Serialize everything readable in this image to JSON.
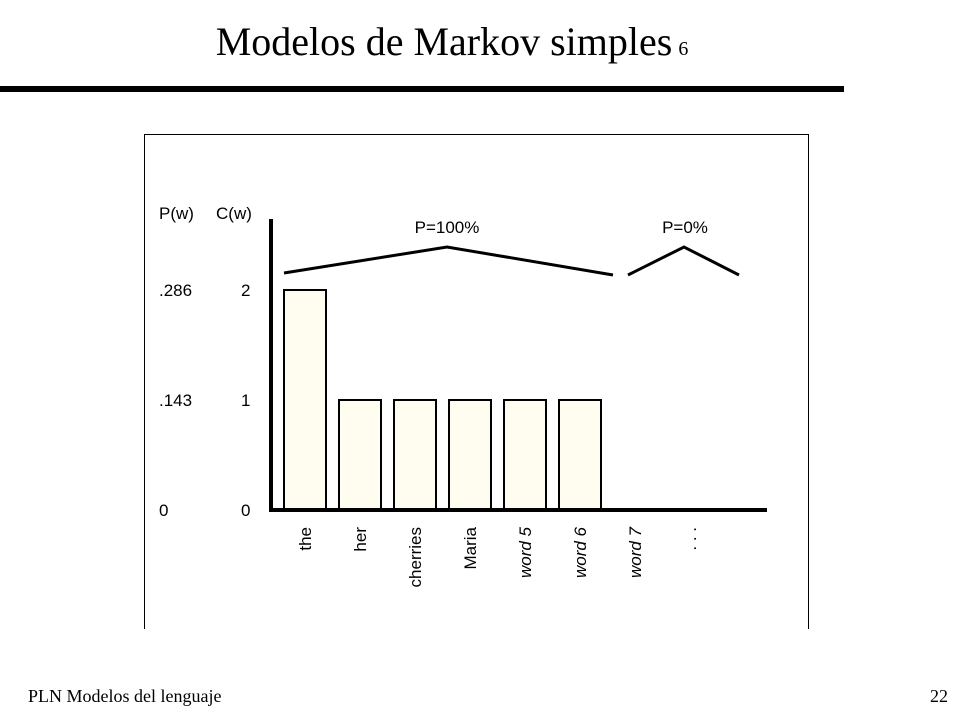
{
  "slide": {
    "title": "Modelos de Markov simples",
    "title_number": "6",
    "footer_left": "PLN  Modelos del lenguaje",
    "page_number": "22"
  },
  "chart_data": {
    "type": "bar",
    "y_axis_headers": [
      "P(w)",
      "C(w)"
    ],
    "prob_ticks": [
      ".286",
      ".143",
      "0"
    ],
    "count_ticks": [
      "2",
      "1",
      "0"
    ],
    "ylim": [
      0,
      2
    ],
    "categories": [
      "the",
      "her",
      "cherries",
      "Maria",
      "word 5",
      "word 6",
      "word 7",
      ". . ."
    ],
    "italic_categories": [
      "word 5",
      "word 6",
      "word 7"
    ],
    "values": [
      2,
      1,
      1,
      1,
      1,
      1,
      0,
      null
    ],
    "bar_color": "#fffdf0",
    "annotations": [
      {
        "text": "P=100%",
        "span": [
          "the",
          "word 6"
        ]
      },
      {
        "text": "P=0%",
        "span": [
          "word 7",
          ". . ."
        ]
      }
    ]
  }
}
